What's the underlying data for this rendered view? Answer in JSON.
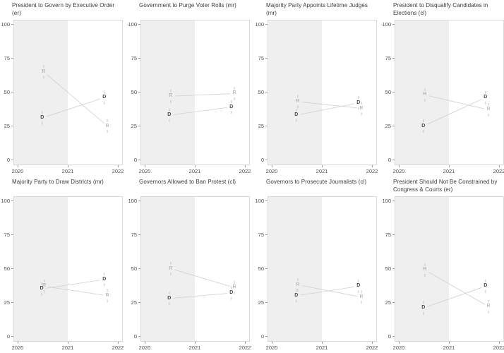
{
  "figure": {
    "title": "",
    "x_axis": {
      "ticks": [
        2020,
        2021,
        2022
      ],
      "labels": [
        "2020",
        "2021",
        "2022"
      ],
      "range": [
        2019.93,
        2022.08
      ]
    },
    "y_axis": {
      "ticks": [
        0,
        25,
        50,
        75,
        100
      ],
      "labels": [
        "0",
        "25",
        "50",
        "75",
        "100"
      ],
      "range": [
        -3.5,
        103
      ]
    },
    "shaded_region": {
      "from": 2019.93,
      "to": 2021
    },
    "legend": "none",
    "grid": "off",
    "colors": {
      "dem_point": "#4a4a4a",
      "rep_point": "#a2a2a2",
      "line": "#cfcfcf",
      "errorbar": "#b8b8b8",
      "shade": "#efefef",
      "panel_border": "#d8d8d8",
      "axis_text": "#4f4f4f",
      "title_text": "#3a3a3a",
      "tick_mark": "#9e9e9e"
    }
  },
  "chart_data": [
    {
      "type": "scatter",
      "title": "President to Govern by Executive Order (er)",
      "xlabel": "",
      "ylabel": "",
      "ylim": [
        0,
        100
      ],
      "series": [
        {
          "name": "D",
          "x": [
            2020.49,
            2021.73
          ],
          "values": [
            31,
            46
          ],
          "ci": 5
        },
        {
          "name": "R",
          "x": [
            2020.52,
            2021.79
          ],
          "values": [
            65,
            25
          ],
          "ci": 5
        }
      ]
    },
    {
      "type": "scatter",
      "title": "Government to Purge Voter Rolls (mr)",
      "xlabel": "",
      "ylabel": "",
      "ylim": [
        0,
        100
      ],
      "series": [
        {
          "name": "D",
          "x": [
            2020.49,
            2021.73
          ],
          "values": [
            33,
            39
          ],
          "ci": 5
        },
        {
          "name": "R",
          "x": [
            2020.52,
            2021.79
          ],
          "values": [
            47,
            49
          ],
          "ci": 5
        }
      ]
    },
    {
      "type": "scatter",
      "title": "Majority Party Appoints Lifetime Judges (mr)",
      "xlabel": "",
      "ylabel": "",
      "ylim": [
        0,
        100
      ],
      "series": [
        {
          "name": "D",
          "x": [
            2020.49,
            2021.73
          ],
          "values": [
            33,
            42
          ],
          "ci": 5
        },
        {
          "name": "R",
          "x": [
            2020.52,
            2021.79
          ],
          "values": [
            43,
            38
          ],
          "ci": 5
        }
      ]
    },
    {
      "type": "scatter",
      "title": "President to Disqualify Candidates in Elections (cl)",
      "xlabel": "",
      "ylabel": "",
      "ylim": [
        0,
        100
      ],
      "series": [
        {
          "name": "D",
          "x": [
            2020.49,
            2021.73
          ],
          "values": [
            25,
            46
          ],
          "ci": 5
        },
        {
          "name": "R",
          "x": [
            2020.52,
            2021.79
          ],
          "values": [
            48,
            37
          ],
          "ci": 5
        }
      ]
    },
    {
      "type": "scatter",
      "title": "Majority Party to Draw Districts (mr)",
      "xlabel": "",
      "ylabel": "",
      "ylim": [
        0,
        100
      ],
      "series": [
        {
          "name": "D",
          "x": [
            2020.48,
            2021.73
          ],
          "values": [
            35,
            42
          ],
          "ci": 5
        },
        {
          "name": "R",
          "x": [
            2020.53,
            2021.79
          ],
          "values": [
            37,
            30
          ],
          "ci": 5
        }
      ]
    },
    {
      "type": "scatter",
      "title": "Governors Allowed to Ban Protest (cl)",
      "xlabel": "",
      "ylabel": "",
      "ylim": [
        0,
        100
      ],
      "series": [
        {
          "name": "D",
          "x": [
            2020.49,
            2021.73
          ],
          "values": [
            28,
            32
          ],
          "ci": 5
        },
        {
          "name": "R",
          "x": [
            2020.52,
            2021.79
          ],
          "values": [
            50,
            36
          ],
          "ci": 5
        }
      ]
    },
    {
      "type": "scatter",
      "title": "Governors to Prosecute Journalists (cl)",
      "xlabel": "",
      "ylabel": "",
      "ylim": [
        0,
        100
      ],
      "series": [
        {
          "name": "D",
          "x": [
            2020.49,
            2021.73
          ],
          "values": [
            30,
            37
          ],
          "ci": 5
        },
        {
          "name": "R",
          "x": [
            2020.52,
            2021.79
          ],
          "values": [
            38,
            29
          ],
          "ci": 5
        }
      ]
    },
    {
      "type": "scatter",
      "title": "President Should Not Be Constrained by Congress & Courts (er)",
      "xlabel": "",
      "ylabel": "",
      "ylim": [
        0,
        100
      ],
      "series": [
        {
          "name": "D",
          "x": [
            2020.49,
            2021.73
          ],
          "values": [
            21,
            37
          ],
          "ci": 5
        },
        {
          "name": "R",
          "x": [
            2020.52,
            2021.79
          ],
          "values": [
            49,
            22
          ],
          "ci": 5
        }
      ]
    }
  ]
}
